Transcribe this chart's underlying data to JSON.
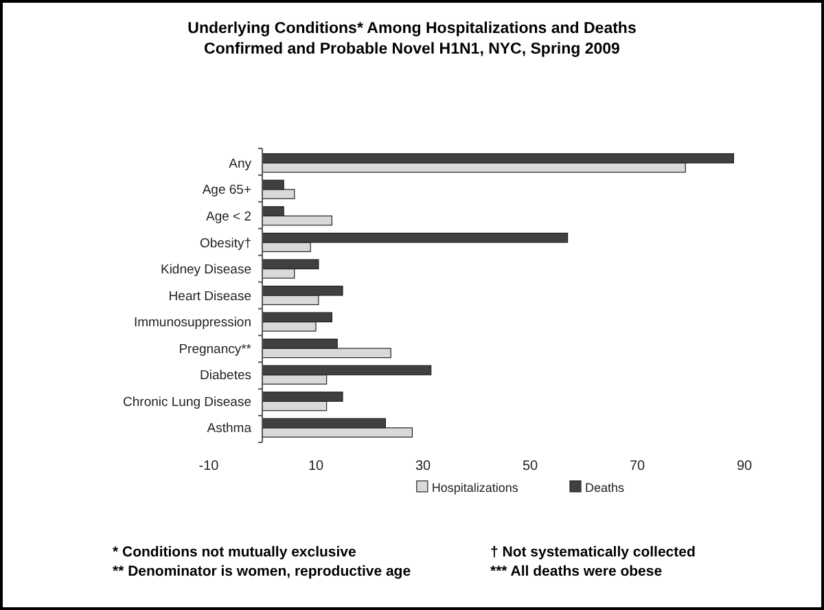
{
  "chart_data": {
    "type": "bar",
    "orientation": "horizontal",
    "title": "Underlying Conditions* Among Hospitalizations and Deaths",
    "subtitle": "Confirmed and Probable Novel H1N1, NYC, Spring 2009",
    "categories": [
      "Any",
      "Age 65+",
      "Age < 2",
      "Obesity†",
      "Kidney Disease",
      "Heart Disease",
      "Immunosuppression",
      "Pregnancy**",
      "Diabetes",
      "Chronic Lung Disease",
      "Asthma"
    ],
    "series": [
      {
        "name": "Hospitalizations",
        "color": "#d9d9d9",
        "values": [
          79,
          6,
          13,
          9,
          6,
          10.5,
          10,
          24,
          12,
          12,
          28
        ]
      },
      {
        "name": "Deaths",
        "color": "#404040",
        "values": [
          88,
          4,
          4,
          57,
          10.5,
          15,
          13,
          14,
          31.5,
          15,
          23
        ]
      }
    ],
    "xlim": [
      -10,
      90
    ],
    "xticks": [
      -10,
      10,
      30,
      50,
      70,
      90
    ],
    "grid": false,
    "legend": "bottom",
    "annotations": [
      "* Conditions not mutually exclusive",
      "† Not systematically collected",
      "** Denominator is women, reproductive age",
      "***  All deaths were obese"
    ]
  }
}
